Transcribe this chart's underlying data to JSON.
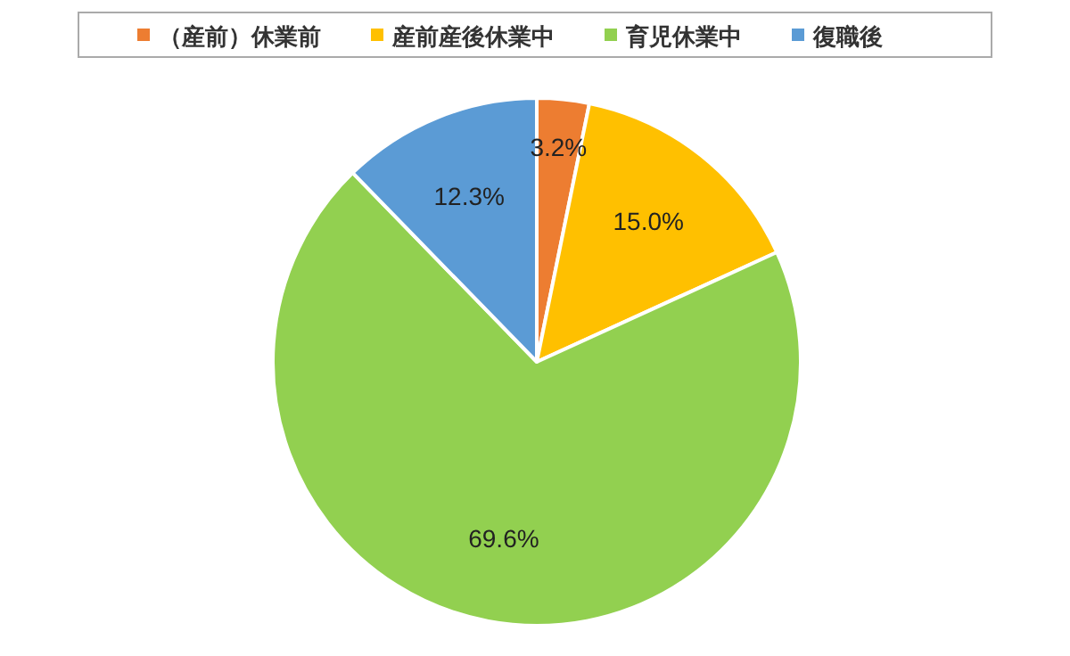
{
  "chart_data": {
    "type": "pie",
    "categories": [
      "（産前）休業前",
      "産前産後休業中",
      "育児休業中",
      "復職後"
    ],
    "values": [
      3.2,
      15.0,
      69.6,
      12.3
    ],
    "colors": [
      "#ed7d31",
      "#ffc000",
      "#92d050",
      "#5b9bd5"
    ],
    "value_labels": [
      "3.2%",
      "15.0%",
      "69.6%",
      "12.3%"
    ],
    "legend": "top"
  }
}
